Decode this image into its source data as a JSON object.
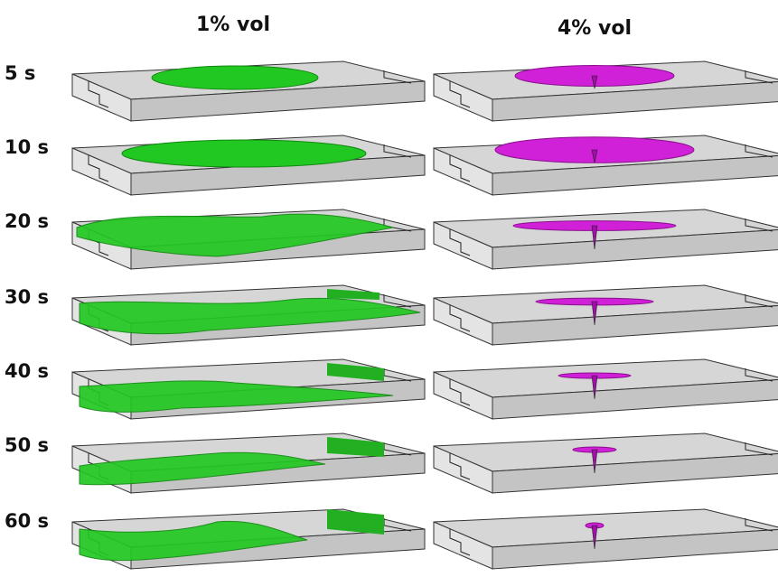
{
  "columns": [
    "1% vol",
    "4% vol"
  ],
  "rows": [
    "5 s",
    "10 s",
    "20 s",
    "30 s",
    "40 s",
    "50 s",
    "60 s"
  ]
}
